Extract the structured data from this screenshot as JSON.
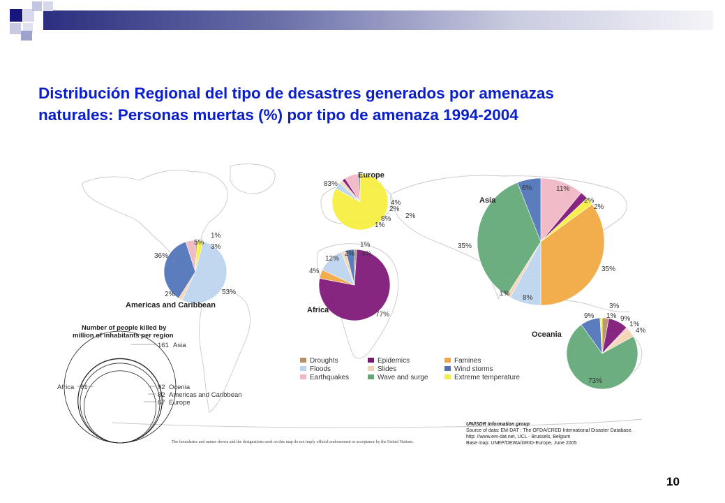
{
  "slide": {
    "title_line1": "Distribución Regional del tipo de desastres generados por amenazas",
    "title_line2": "naturales: Personas muertas (%) por tipo de amenaza 1994-2004",
    "page_number": "10"
  },
  "colors": {
    "title": "#0a1fc9",
    "header_bar_dark": "#2b2f7f",
    "header_bar_light": "#e6e8f2",
    "Droughts": "#b88f6a",
    "Floods": "#bcd3ee",
    "Earthquakes": "#f0b7c4",
    "Epidemics": "#7d1577",
    "Slides": "#f4d3b2",
    "Wave and surge": "#62a876",
    "Famines": "#f1a840",
    "Wind storms": "#4f72b8",
    "Extreme temperature": "#f6ee3e"
  },
  "legend_title": "Number of people killed by million of inhabitants per region",
  "source_box": {
    "line1": "UN/ISDR Information group",
    "line2": "Source of data: EM-DAT : The OFDA/CRED International Disaster Database.",
    "line3": "http: //www.em-dat.net, UCL - Brussels, Belgium",
    "line4": "Base map: UNEP/DEWA/GRID-Europe, June 2005"
  },
  "disclaimer": "The boundaries and names shown and the designations used on this map do not imply official endorsement or acceptance by the United Nations.",
  "chart_data": [
    {
      "type": "pie",
      "title": "Europe",
      "slices": [
        {
          "label": "Extreme temperature",
          "value": 83,
          "text": "83%"
        },
        {
          "label": "Floods",
          "value": 4,
          "text": "4%"
        },
        {
          "label": "Slides",
          "value": 2,
          "text": "2%"
        },
        {
          "label": "Epidemics",
          "value": 2,
          "text": "2%"
        },
        {
          "label": "Earthquakes",
          "value": 8,
          "text": "8%"
        },
        {
          "label": "Wind storms",
          "value": 1,
          "text": "1%"
        }
      ]
    },
    {
      "type": "pie",
      "title": "Asia",
      "slices": [
        {
          "label": "Earthquakes",
          "value": 11,
          "text": "11%"
        },
        {
          "label": "Epidemics",
          "value": 2,
          "text": "2%"
        },
        {
          "label": "Extreme temperature",
          "value": 2,
          "text": "2%"
        },
        {
          "label": "Famines",
          "value": 35,
          "text": "35%"
        },
        {
          "label": "Floods",
          "value": 8,
          "text": "8%"
        },
        {
          "label": "Slides",
          "value": 1,
          "text": "1%"
        },
        {
          "label": "Wave and surge",
          "value": 35,
          "text": "35%"
        },
        {
          "label": "Wind storms",
          "value": 6,
          "text": "6%"
        }
      ]
    },
    {
      "type": "pie",
      "title": "Americas and Caribbean",
      "slices": [
        {
          "label": "Droughts",
          "value": 1,
          "text": "1%"
        },
        {
          "label": "Extreme temperature",
          "value": 3,
          "text": "3%"
        },
        {
          "label": "Floods",
          "value": 53,
          "text": "53%"
        },
        {
          "label": "Slides",
          "value": 2,
          "text": "2%"
        },
        {
          "label": "Wind storms",
          "value": 36,
          "text": "36%"
        },
        {
          "label": "Earthquakes",
          "value": 5,
          "text": "5%"
        }
      ]
    },
    {
      "type": "pie",
      "title": "Africa",
      "slices": [
        {
          "label": "Droughts",
          "value": 1,
          "text": "1%"
        },
        {
          "label": "Epidemics",
          "value": 77,
          "text": "77%"
        },
        {
          "label": "Famines",
          "value": 4,
          "text": "4%"
        },
        {
          "label": "Floods",
          "value": 12,
          "text": "12%"
        },
        {
          "label": "Slides",
          "value": 2,
          "text": "2%"
        },
        {
          "label": "Wind storms",
          "value": 4,
          "text": "4%"
        }
      ]
    },
    {
      "type": "pie",
      "title": "Oceania",
      "slices": [
        {
          "label": "Droughts",
          "value": 3,
          "text": "3%"
        },
        {
          "label": "Epidemics",
          "value": 9,
          "text": "9%"
        },
        {
          "label": "Earthquakes",
          "value": 1,
          "text": "1%"
        },
        {
          "label": "Slides",
          "value": 4,
          "text": "4%"
        },
        {
          "label": "Wave and surge",
          "value": 73,
          "text": "73%"
        },
        {
          "label": "Wind storms",
          "value": 9,
          "text": "9%"
        },
        {
          "label": "Extreme temperature",
          "value": 1,
          "text": "1%"
        }
      ]
    },
    {
      "type": "bubble",
      "title": "Number of people killed by million of inhabitants per region",
      "points": [
        {
          "region": "Asia",
          "value": 161
        },
        {
          "region": "Africa",
          "value": 91
        },
        {
          "region": "Ocenia",
          "value": 92
        },
        {
          "region": "Americas and Caribbean",
          "value": 82
        },
        {
          "region": "Europe",
          "value": 67
        }
      ]
    }
  ],
  "legend": [
    {
      "label": "Droughts"
    },
    {
      "label": "Floods"
    },
    {
      "label": "Earthquakes"
    },
    {
      "label": "Epidemics"
    },
    {
      "label": "Slides"
    },
    {
      "label": "Wave and surge"
    },
    {
      "label": "Famines"
    },
    {
      "label": "Wind storms"
    },
    {
      "label": "Extreme temperature"
    }
  ]
}
